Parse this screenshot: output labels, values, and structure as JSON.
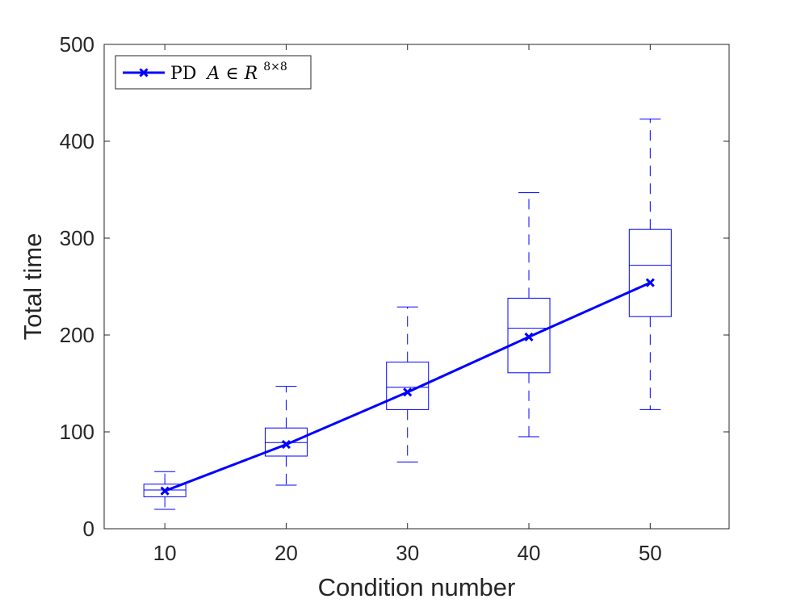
{
  "chart_data": {
    "type": "box",
    "xlabel": "Condition number",
    "ylabel": "Total time",
    "xlim": [
      5,
      56.5
    ],
    "ylim": [
      0,
      500
    ],
    "xticks": [
      10,
      20,
      30,
      40,
      50
    ],
    "yticks": [
      0,
      100,
      200,
      300,
      400,
      500
    ],
    "grid": false,
    "legend": {
      "location": "top-left",
      "label_prefix": "PD",
      "label_math": "A ∈ R",
      "label_sup": "8×8"
    },
    "color": "#0000ff",
    "boxes": [
      {
        "x": 10,
        "whisker_low": 20,
        "q1": 33,
        "median": 40,
        "q3": 46,
        "whisker_high": 59
      },
      {
        "x": 20,
        "whisker_low": 45,
        "q1": 75,
        "median": 89,
        "q3": 104,
        "whisker_high": 147
      },
      {
        "x": 30,
        "whisker_low": 69,
        "q1": 123,
        "median": 146,
        "q3": 172,
        "whisker_high": 229
      },
      {
        "x": 40,
        "whisker_low": 95,
        "q1": 161,
        "median": 207,
        "q3": 238,
        "whisker_high": 347
      },
      {
        "x": 50,
        "whisker_low": 123,
        "q1": 219,
        "median": 272,
        "q3": 309,
        "whisker_high": 423
      }
    ],
    "series": [
      {
        "name": "PD A ∈ R^{8×8}",
        "x": [
          10,
          20,
          30,
          40,
          50
        ],
        "values": [
          39,
          87,
          141,
          198,
          254
        ]
      }
    ]
  }
}
